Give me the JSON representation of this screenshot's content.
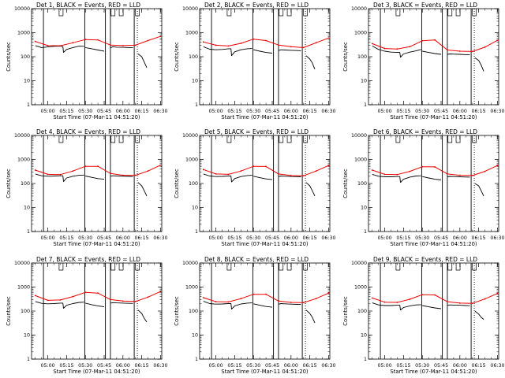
{
  "colors": {
    "events": "#000000",
    "lld": "#ee0000",
    "frame": "#000000"
  },
  "chart_data": {
    "type": "line",
    "layout": "3x3 grid",
    "xlabel": "Start Time (07-Mar-11 04:51:20)",
    "ylabel": "Counts/sec",
    "x_ticks": [
      "05:00",
      "05:15",
      "05:30",
      "05:45",
      "06:00",
      "06:15",
      "06:30"
    ],
    "x_tick_minutes": [
      0,
      15,
      30,
      45,
      60,
      75,
      90
    ],
    "x_range_minutes": [
      -13,
      91
    ],
    "yscale": "log",
    "ylim": [
      1,
      10000
    ],
    "y_ticks": [
      "1",
      "10",
      "100",
      "1000",
      "10000"
    ],
    "y_tick_values": [
      1,
      10,
      100,
      1000,
      10000
    ],
    "vertical_markers_minutes": [
      -3.5,
      29.5,
      46,
      50,
      69
    ],
    "dotted_markers_minutes": [
      71.5
    ],
    "flag_markers_minutes": [
      9,
      50.5,
      57,
      70
    ],
    "panels": [
      {
        "title": "Det 1, BLACK = Events, RED = LLD",
        "series": [
          {
            "name": "Events",
            "x": [
              -10,
              -5,
              0,
              5,
              10,
              12,
              12.5,
              15,
              20,
              25,
              29
            ],
            "y": [
              290,
              240,
              255,
              270,
              275,
              262,
              150,
              200,
              240,
              275,
              270
            ]
          },
          {
            "name": "Events",
            "x": [
              30,
              35,
              40,
              45
            ],
            "y": [
              240,
              215,
              190,
              170
            ]
          },
          {
            "name": "Events",
            "x": [
              50,
              52,
              55,
              60,
              65,
              68
            ],
            "y": [
              235,
              260,
              250,
              245,
              240,
              240
            ]
          },
          {
            "name": "Events",
            "x": [
              72,
              75,
              77,
              79
            ],
            "y": [
              130,
              100,
              60,
              35
            ]
          },
          {
            "name": "LLD",
            "x": [
              -10,
              0,
              10,
              20,
              30,
              40,
              50,
              60,
              70,
              80,
              90
            ],
            "y": [
              430,
              290,
              285,
              380,
              520,
              500,
              305,
              290,
              300,
              470,
              700
            ]
          }
        ]
      },
      {
        "title": "Det 2, BLACK = Events, RED = LLD",
        "series": [
          {
            "name": "Events",
            "x": [
              -10,
              -5,
              0,
              5,
              10,
              12,
              12.5,
              15,
              20,
              25,
              29
            ],
            "y": [
              260,
              205,
              195,
              200,
              215,
              215,
              110,
              160,
              195,
              215,
              220
            ]
          },
          {
            "name": "Events",
            "x": [
              30,
              35,
              40,
              45
            ],
            "y": [
              195,
              170,
              150,
              140
            ]
          },
          {
            "name": "Events",
            "x": [
              50,
              52,
              55,
              60,
              65,
              68
            ],
            "y": [
              180,
              195,
              190,
              185,
              180,
              178
            ]
          },
          {
            "name": "Events",
            "x": [
              72,
              75,
              77,
              79
            ],
            "y": [
              110,
              80,
              55,
              30
            ]
          },
          {
            "name": "LLD",
            "x": [
              -10,
              0,
              10,
              20,
              30,
              40,
              50,
              60,
              70,
              80,
              90
            ],
            "y": [
              410,
              300,
              280,
              360,
              540,
              470,
              305,
              260,
              240,
              380,
              600
            ]
          }
        ]
      },
      {
        "title": "Det 3, BLACK = Events, RED = LLD",
        "series": [
          {
            "name": "Events",
            "x": [
              -10,
              -5,
              0,
              5,
              10,
              12,
              12.5,
              15,
              20,
              25,
              29
            ],
            "y": [
              280,
              200,
              170,
              155,
              150,
              150,
              95,
              130,
              155,
              175,
              200
            ]
          },
          {
            "name": "Events",
            "x": [
              30,
              35,
              40,
              45
            ],
            "y": [
              170,
              150,
              135,
              125
            ]
          },
          {
            "name": "Events",
            "x": [
              50,
              52,
              55,
              60,
              65,
              68
            ],
            "y": [
              125,
              130,
              128,
              125,
              122,
              120
            ]
          },
          {
            "name": "Events",
            "x": [
              72,
              75,
              77,
              79
            ],
            "y": [
              90,
              70,
              45,
              25
            ]
          },
          {
            "name": "LLD",
            "x": [
              -10,
              0,
              10,
              20,
              30,
              40,
              50,
              60,
              70,
              80,
              90
            ],
            "y": [
              350,
              220,
              210,
              260,
              460,
              500,
              190,
              170,
              165,
              250,
              480
            ]
          }
        ]
      },
      {
        "title": "Det 4, BLACK = Events, RED = LLD",
        "series": [
          {
            "name": "Events",
            "x": [
              -10,
              -5,
              0,
              5,
              10,
              12,
              12.5,
              15,
              20,
              25,
              29
            ],
            "y": [
              250,
              210,
              200,
              205,
              210,
              210,
              120,
              170,
              200,
              220,
              225
            ]
          },
          {
            "name": "Events",
            "x": [
              30,
              35,
              40,
              45
            ],
            "y": [
              205,
              180,
              160,
              150
            ]
          },
          {
            "name": "Events",
            "x": [
              50,
              52,
              55,
              60,
              65,
              68
            ],
            "y": [
              200,
              210,
              205,
              200,
              198,
              195
            ]
          },
          {
            "name": "Events",
            "x": [
              72,
              75,
              77,
              79
            ],
            "y": [
              110,
              80,
              50,
              30
            ]
          },
          {
            "name": "LLD",
            "x": [
              -10,
              0,
              10,
              20,
              30,
              40,
              50,
              60,
              70,
              80,
              90
            ],
            "y": [
              360,
              240,
              235,
              330,
              520,
              520,
              260,
              220,
              220,
              330,
              580
            ]
          }
        ]
      },
      {
        "title": "Det 5, BLACK = Events, RED = LLD",
        "series": [
          {
            "name": "Events",
            "x": [
              -10,
              -5,
              0,
              5,
              10,
              12,
              12.5,
              15,
              20,
              25,
              29
            ],
            "y": [
              250,
              205,
              195,
              198,
              205,
              205,
              115,
              160,
              195,
              215,
              220
            ]
          },
          {
            "name": "Events",
            "x": [
              30,
              35,
              40,
              45
            ],
            "y": [
              200,
              175,
              155,
              145
            ]
          },
          {
            "name": "Events",
            "x": [
              50,
              52,
              55,
              60,
              65,
              68
            ],
            "y": [
              195,
              205,
              200,
              195,
              192,
              190
            ]
          },
          {
            "name": "Events",
            "x": [
              72,
              75,
              77,
              79
            ],
            "y": [
              110,
              80,
              50,
              30
            ]
          },
          {
            "name": "LLD",
            "x": [
              -10,
              0,
              10,
              20,
              30,
              40,
              50,
              60,
              70,
              80,
              90
            ],
            "y": [
              380,
              250,
              240,
              330,
              520,
              510,
              250,
              215,
              210,
              330,
              560
            ]
          }
        ]
      },
      {
        "title": "Det 6, BLACK = Events, RED = LLD",
        "series": [
          {
            "name": "Events",
            "x": [
              -10,
              -5,
              0,
              5,
              10,
              12,
              12.5,
              15,
              20,
              25,
              29
            ],
            "y": [
              240,
              200,
              190,
              190,
              195,
              195,
              110,
              150,
              185,
              205,
              210
            ]
          },
          {
            "name": "Events",
            "x": [
              30,
              35,
              40,
              45
            ],
            "y": [
              195,
              170,
              150,
              140
            ]
          },
          {
            "name": "Events",
            "x": [
              50,
              52,
              55,
              60,
              65,
              68
            ],
            "y": [
              190,
              198,
              195,
              190,
              186,
              185
            ]
          },
          {
            "name": "Events",
            "x": [
              72,
              75,
              77,
              79
            ],
            "y": [
              100,
              80,
              50,
              30
            ]
          },
          {
            "name": "LLD",
            "x": [
              -10,
              0,
              10,
              20,
              30,
              40,
              50,
              60,
              70,
              80,
              90
            ],
            "y": [
              360,
              240,
              235,
              320,
              500,
              490,
              250,
              220,
              215,
              320,
              560
            ]
          }
        ]
      },
      {
        "title": "Det 7, BLACK = Events, RED = LLD",
        "series": [
          {
            "name": "Events",
            "x": [
              -10,
              -5,
              0,
              5,
              10,
              12,
              12.5,
              15,
              20,
              25,
              29
            ],
            "y": [
              250,
              210,
              200,
              205,
              215,
              215,
              130,
              175,
              205,
              230,
              235
            ]
          },
          {
            "name": "Events",
            "x": [
              30,
              35,
              40,
              45
            ],
            "y": [
              215,
              185,
              165,
              150
            ]
          },
          {
            "name": "Events",
            "x": [
              50,
              52,
              55,
              60,
              65,
              68
            ],
            "y": [
              215,
              225,
              220,
              215,
              210,
              208
            ]
          },
          {
            "name": "Events",
            "x": [
              72,
              75,
              77,
              79
            ],
            "y": [
              110,
              80,
              50,
              35
            ]
          },
          {
            "name": "LLD",
            "x": [
              -10,
              0,
              10,
              20,
              30,
              40,
              50,
              60,
              70,
              80,
              90
            ],
            "y": [
              440,
              280,
              290,
              400,
              600,
              560,
              300,
              260,
              250,
              380,
              650
            ]
          }
        ]
      },
      {
        "title": "Det 8, BLACK = Events, RED = LLD",
        "series": [
          {
            "name": "Events",
            "x": [
              -10,
              -5,
              0,
              5,
              10,
              12,
              12.5,
              15,
              20,
              25,
              29
            ],
            "y": [
              255,
              205,
              195,
              198,
              205,
              205,
              120,
              165,
              198,
              215,
              220
            ]
          },
          {
            "name": "Events",
            "x": [
              30,
              35,
              40,
              45
            ],
            "y": [
              200,
              175,
              155,
              145
            ]
          },
          {
            "name": "Events",
            "x": [
              50,
              52,
              55,
              60,
              65,
              68
            ],
            "y": [
              195,
              205,
              200,
              195,
              190,
              188
            ]
          },
          {
            "name": "Events",
            "x": [
              72,
              75,
              77,
              79
            ],
            "y": [
              110,
              80,
              55,
              32
            ]
          },
          {
            "name": "LLD",
            "x": [
              -10,
              0,
              10,
              20,
              30,
              40,
              50,
              60,
              70,
              80,
              90
            ],
            "y": [
              360,
              245,
              240,
              330,
              500,
              500,
              260,
              230,
              225,
              330,
              560
            ]
          }
        ]
      },
      {
        "title": "Det 9, BLACK = Events, RED = LLD",
        "series": [
          {
            "name": "Events",
            "x": [
              -10,
              -5,
              0,
              5,
              10,
              12,
              12.5,
              15,
              20,
              25,
              29
            ],
            "y": [
              220,
              180,
              170,
              170,
              175,
              175,
              110,
              140,
              165,
              180,
              185
            ]
          },
          {
            "name": "Events",
            "x": [
              30,
              35,
              40,
              45
            ],
            "y": [
              170,
              150,
              135,
              125
            ]
          },
          {
            "name": "Events",
            "x": [
              50,
              52,
              55,
              60,
              65,
              68
            ],
            "y": [
              175,
              180,
              178,
              175,
              170,
              168
            ]
          },
          {
            "name": "Events",
            "x": [
              72,
              75,
              77,
              79
            ],
            "y": [
              100,
              75,
              55,
              45
            ]
          },
          {
            "name": "LLD",
            "x": [
              -10,
              0,
              10,
              20,
              30,
              40,
              50,
              60,
              70,
              80,
              90
            ],
            "y": [
              350,
              235,
              230,
              310,
              480,
              470,
              245,
              215,
              210,
              320,
              540
            ]
          }
        ]
      }
    ]
  }
}
